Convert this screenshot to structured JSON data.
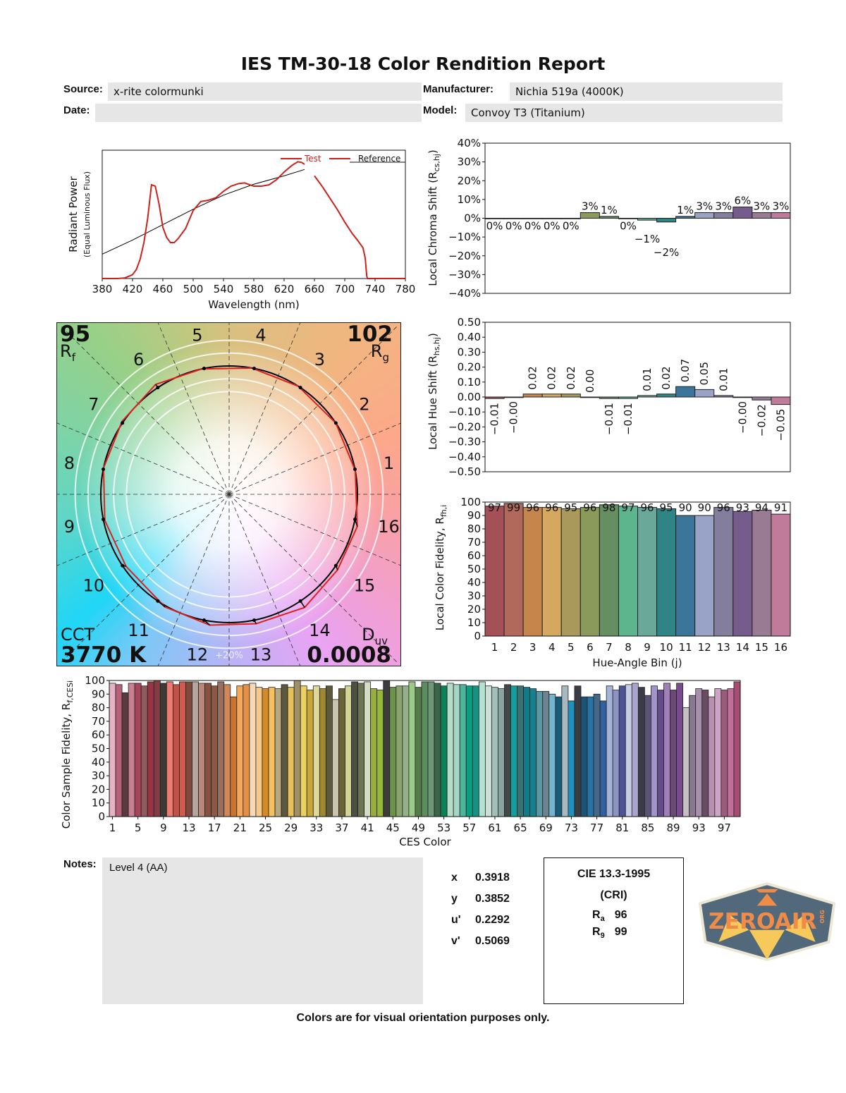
{
  "header": {
    "title": "IES TM-30-18 Color Rendition Report",
    "source_label": "Source:",
    "source_value": "x-rite colormunki",
    "date_label": "Date:",
    "date_value": "",
    "manufacturer_label": "Manufacturer:",
    "manufacturer_value": "Nichia 519a (4000K)",
    "model_label": "Model:",
    "model_value": "Convoy T3 (Titanium)"
  },
  "spectrum": {
    "type": "line",
    "xlabel": "Wavelength (nm)",
    "ylabel": "Radiant Power",
    "ylabel_sub": "(Equal Luminous Flux)",
    "xlim": [
      380,
      780
    ],
    "xticks": [
      "380",
      "420",
      "460",
      "500",
      "540",
      "580",
      "620",
      "660",
      "700",
      "740",
      "780"
    ],
    "legend": [
      "Test",
      "Reference"
    ],
    "legend_placement": "top-right",
    "test_color": "#d0201c",
    "reference_color": "#000000",
    "test_segments": [
      [
        [
          380,
          0
        ],
        [
          400,
          0
        ],
        [
          410,
          0.005
        ],
        [
          420,
          0.03
        ],
        [
          425,
          0.07
        ],
        [
          430,
          0.15
        ],
        [
          435,
          0.28
        ],
        [
          440,
          0.47
        ],
        [
          445,
          0.73
        ],
        [
          450,
          0.72
        ],
        [
          455,
          0.58
        ],
        [
          460,
          0.4
        ],
        [
          465,
          0.32
        ],
        [
          470,
          0.28
        ],
        [
          475,
          0.28
        ],
        [
          480,
          0.31
        ],
        [
          490,
          0.39
        ],
        [
          500,
          0.53
        ],
        [
          510,
          0.6
        ],
        [
          520,
          0.61
        ],
        [
          530,
          0.63
        ],
        [
          540,
          0.68
        ],
        [
          550,
          0.72
        ],
        [
          560,
          0.74
        ],
        [
          568,
          0.745
        ],
        [
          575,
          0.73
        ],
        [
          580,
          0.72
        ],
        [
          590,
          0.72
        ],
        [
          600,
          0.73
        ],
        [
          610,
          0.77
        ],
        [
          620,
          0.83
        ],
        [
          630,
          0.88
        ],
        [
          638,
          0.91
        ],
        [
          643,
          0.905
        ],
        [
          647,
          0.89
        ]
      ],
      [
        [
          660,
          0.8
        ],
        [
          670,
          0.72
        ],
        [
          680,
          0.63
        ],
        [
          690,
          0.54
        ],
        [
          700,
          0.44
        ],
        [
          710,
          0.35
        ],
        [
          718,
          0.29
        ],
        [
          724,
          0.24
        ],
        [
          727,
          0.16
        ],
        [
          729,
          0.02
        ],
        [
          730,
          0
        ],
        [
          780,
          0
        ]
      ]
    ],
    "reference_points": [
      [
        380,
        0.19
      ],
      [
        420,
        0.3
      ],
      [
        460,
        0.42
      ],
      [
        500,
        0.54
      ],
      [
        540,
        0.65
      ],
      [
        580,
        0.735
      ],
      [
        620,
        0.8
      ],
      [
        647,
        0.85
      ]
    ]
  },
  "vector_graphic": {
    "rf_value": "95",
    "rf_label": "R",
    "rf_sub": "f",
    "rg_value": "102",
    "rg_label": "R",
    "rg_sub": "g",
    "cct_label": "CCT",
    "cct_value": "3770 K",
    "duv_label": "D",
    "duv_sub": "uv",
    "duv_value": "0.0008",
    "ring_label": "+20%",
    "bin_labels": [
      "1",
      "2",
      "3",
      "4",
      "5",
      "6",
      "7",
      "8",
      "9",
      "10",
      "11",
      "12",
      "13",
      "14",
      "15",
      "16"
    ],
    "test_color": "#e0201c",
    "reference_color": "#000000"
  },
  "chart_data": [
    {
      "type": "bar",
      "ylabel": "Local Chroma Shift (R",
      "ylabel_sub": "cs,hj",
      "ylim": [
        -40,
        40
      ],
      "yticks": [
        "40%",
        "30%",
        "20%",
        "10%",
        "0%",
        "−10%",
        "−20%",
        "−30%",
        "−40%"
      ],
      "categories": [
        "1",
        "2",
        "3",
        "4",
        "5",
        "6",
        "7",
        "8",
        "9",
        "10",
        "11",
        "12",
        "13",
        "14",
        "15",
        "16"
      ],
      "values": [
        0,
        0,
        0,
        0,
        0,
        3,
        1,
        0,
        -1,
        -2,
        1,
        3,
        3,
        6,
        3,
        3
      ],
      "labels": [
        "0%",
        "0%",
        "0%",
        "0%",
        "0%",
        "3%",
        "1%",
        "0%",
        "−1%",
        "−2%",
        "1%",
        "3%",
        "3%",
        "6%",
        "3%",
        "3%"
      ]
    },
    {
      "type": "bar",
      "ylabel": "Local Hue Shift (R",
      "ylabel_sub": "hs,hj",
      "ylim": [
        -0.5,
        0.5
      ],
      "yticks": [
        "0.50",
        "0.40",
        "0.30",
        "0.20",
        "0.10",
        "0.00",
        "−0.10",
        "−0.20",
        "−0.30",
        "−0.40",
        "−0.50"
      ],
      "categories": [
        "1",
        "2",
        "3",
        "4",
        "5",
        "6",
        "7",
        "8",
        "9",
        "10",
        "11",
        "12",
        "13",
        "14",
        "15",
        "16"
      ],
      "values": [
        -0.01,
        -0.0,
        0.02,
        0.02,
        0.02,
        0.0,
        -0.01,
        -0.01,
        0.01,
        0.02,
        0.07,
        0.05,
        0.01,
        -0.0,
        -0.02,
        -0.05
      ],
      "labels": [
        "−0.01",
        "−0.00",
        "0.02",
        "0.02",
        "0.02",
        "0.00",
        "−0.01",
        "−0.01",
        "0.01",
        "0.02",
        "0.07",
        "0.05",
        "0.01",
        "−0.00",
        "−0.02",
        "−0.05"
      ]
    },
    {
      "type": "bar",
      "xlabel": "Hue-Angle Bin (j)",
      "ylabel": "Local Color Fidelity, R",
      "ylabel_sub": "fh,i",
      "ylim": [
        0,
        100
      ],
      "yticks": [
        "100",
        "90",
        "80",
        "70",
        "60",
        "50",
        "40",
        "30",
        "20",
        "10",
        "0"
      ],
      "categories": [
        "1",
        "2",
        "3",
        "4",
        "5",
        "6",
        "7",
        "8",
        "9",
        "10",
        "11",
        "12",
        "13",
        "14",
        "15",
        "16"
      ],
      "values": [
        97,
        99,
        96,
        96,
        95,
        96,
        98,
        97,
        96,
        95,
        90,
        90,
        96,
        93,
        94,
        91
      ],
      "labels": [
        "97",
        "99",
        "96",
        "96",
        "95",
        "96",
        "98",
        "97",
        "96",
        "95",
        "90",
        "90",
        "96",
        "93",
        "94",
        "91"
      ]
    },
    {
      "type": "bar",
      "xlabel": "CES Color",
      "ylabel": "Color Sample Fidelity, R",
      "ylabel_sub": "f,CESi",
      "ylim": [
        0,
        100
      ],
      "yticks": [
        "100",
        "90",
        "80",
        "70",
        "60",
        "50",
        "40",
        "30",
        "20",
        "10",
        "0"
      ],
      "xticks": [
        "1",
        "5",
        "9",
        "13",
        "17",
        "21",
        "25",
        "29",
        "33",
        "37",
        "41",
        "45",
        "49",
        "53",
        "57",
        "61",
        "65",
        "69",
        "73",
        "77",
        "81",
        "85",
        "89",
        "93",
        "97"
      ],
      "values": [
        98,
        97,
        91,
        98,
        98,
        96,
        99,
        100,
        98,
        99,
        97,
        99,
        99,
        99,
        98,
        98,
        96,
        99,
        97,
        88,
        96,
        97,
        98,
        95,
        94,
        95,
        94,
        97,
        95,
        100,
        96,
        93,
        96,
        94,
        96,
        86,
        94,
        96,
        99,
        98,
        99,
        94,
        93,
        100,
        95,
        96,
        96,
        99,
        95,
        99,
        99,
        98,
        96,
        98,
        97,
        97,
        96,
        96,
        99,
        96,
        95,
        94,
        97,
        96,
        96,
        95,
        94,
        92,
        92,
        90,
        88,
        96,
        85,
        96,
        88,
        88,
        90,
        85,
        96,
        93,
        96,
        97,
        98,
        95,
        89,
        96,
        93,
        98,
        93,
        98,
        80,
        89,
        94,
        93,
        88,
        94,
        93,
        94,
        99
      ]
    }
  ],
  "bin_colors": [
    "#a35057",
    "#b0695a",
    "#c5854b",
    "#d4a85f",
    "#a99a5c",
    "#8a9a5b",
    "#658f61",
    "#5db58e",
    "#6aa89a",
    "#2f8585",
    "#3b7599",
    "#99a3c7",
    "#827e9c",
    "#755c8c",
    "#9a7b94",
    "#c07a9a"
  ],
  "ces_colors": [
    "#e4b4c6",
    "#b8607a",
    "#5a3a3e",
    "#c98090",
    "#a8445c",
    "#8e5a5c",
    "#993444",
    "#843c44",
    "#3c3a36",
    "#ee7a70",
    "#c0524a",
    "#d05a4e",
    "#7e4a3e",
    "#b8a49e",
    "#b88878",
    "#8a5040",
    "#8a5a44",
    "#987060",
    "#d08858",
    "#c87430",
    "#f4a85c",
    "#e49048",
    "#f4d8b8",
    "#f8c888",
    "#d48c28",
    "#f4c060",
    "#b8a880",
    "#5c5840",
    "#e8c058",
    "#a09068",
    "#ecd060",
    "#c8a838",
    "#e0d898",
    "#a08830",
    "#5c5838",
    "#c8c4b0",
    "#6c6438",
    "#d4d498",
    "#4c5040",
    "#6c7454",
    "#d4dcc4",
    "#98ac40",
    "#98b838",
    "#3c3c3c",
    "#6c9448",
    "#8aa470",
    "#94b088",
    "#9cc888",
    "#547c48",
    "#5c8c60",
    "#6c9878",
    "#3c6448",
    "#0c8058",
    "#b4dcc8",
    "#a8d4c4",
    "#4cb498",
    "#08a080",
    "#149480",
    "#b4e0d4",
    "#cce0d8",
    "#a0c0b8",
    "#8ca4a0",
    "#404848",
    "#10a0a0",
    "#3c7070",
    "#0c7c88",
    "#18808c",
    "#5898a4",
    "#6c8490",
    "#74b4d0",
    "#185c78",
    "#a8b8c0",
    "#2090bc",
    "#383c44",
    "#1c5478",
    "#2874a8",
    "#446888",
    "#3060a0",
    "#a4b4d8",
    "#8c94c4",
    "#4c5494",
    "#c8cce4",
    "#a8a4cc",
    "#3c3c48",
    "#5c5474",
    "#a094c8",
    "#644c8c",
    "#a080b8",
    "#6c4878",
    "#784c8c",
    "#c4c0c4",
    "#887890",
    "#a890ac",
    "#684c64",
    "#b890b0",
    "#cca4c4",
    "#9c5c7c",
    "#c07098",
    "#a84c74"
  ],
  "logo": {
    "text": "ZEROAIR",
    "suffix": "ORG"
  },
  "notes": {
    "label": "Notes:",
    "value": "Level 4 (AA)"
  },
  "chromaticity": [
    {
      "label": "x",
      "value": "0.3918"
    },
    {
      "label": "y",
      "value": "0.3852"
    },
    {
      "label": "u'",
      "value": "0.2292"
    },
    {
      "label": "v'",
      "value": "0.5069"
    }
  ],
  "cri": {
    "title": "CIE 13.3-1995",
    "subtitle": "(CRI)",
    "ra_label": "R",
    "ra_sub": "a",
    "ra_value": "96",
    "r9_label": "R",
    "r9_sub": "9",
    "r9_value": "99"
  },
  "footer": "Colors are for visual orientation purposes only."
}
